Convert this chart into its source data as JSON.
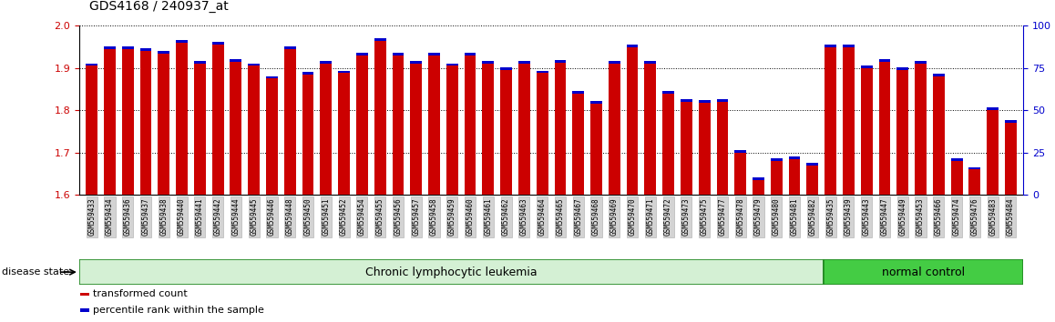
{
  "title": "GDS4168 / 240937_at",
  "samples": [
    "GSM559433",
    "GSM559434",
    "GSM559436",
    "GSM559437",
    "GSM559438",
    "GSM559440",
    "GSM559441",
    "GSM559442",
    "GSM559444",
    "GSM559445",
    "GSM559446",
    "GSM559448",
    "GSM559450",
    "GSM559451",
    "GSM559452",
    "GSM559454",
    "GSM559455",
    "GSM559456",
    "GSM559457",
    "GSM559458",
    "GSM559459",
    "GSM559460",
    "GSM559461",
    "GSM559462",
    "GSM559463",
    "GSM559464",
    "GSM559465",
    "GSM559467",
    "GSM559468",
    "GSM559469",
    "GSM559470",
    "GSM559471",
    "GSM559472",
    "GSM559473",
    "GSM559475",
    "GSM559477",
    "GSM559478",
    "GSM559479",
    "GSM559480",
    "GSM559481",
    "GSM559482",
    "GSM559435",
    "GSM559439",
    "GSM559443",
    "GSM559447",
    "GSM559449",
    "GSM559453",
    "GSM559466",
    "GSM559474",
    "GSM559476",
    "GSM559483",
    "GSM559484"
  ],
  "values": [
    1.905,
    1.945,
    1.945,
    1.94,
    1.935,
    1.96,
    1.91,
    1.955,
    1.915,
    1.905,
    1.875,
    1.945,
    1.885,
    1.91,
    1.888,
    1.93,
    1.965,
    1.93,
    1.91,
    1.93,
    1.905,
    1.93,
    1.91,
    1.895,
    1.91,
    1.888,
    1.912,
    1.84,
    1.815,
    1.91,
    1.95,
    1.91,
    1.84,
    1.82,
    1.818,
    1.82,
    1.7,
    1.635,
    1.68,
    1.685,
    1.67,
    1.95,
    1.95,
    1.9,
    1.915,
    1.895,
    1.91,
    1.88,
    1.68,
    1.66,
    1.8,
    1.77
  ],
  "cll_count": 41,
  "nc_count": 11,
  "ylim": [
    1.6,
    2.0
  ],
  "yticks": [
    1.6,
    1.7,
    1.8,
    1.9,
    2.0
  ],
  "right_yticks": [
    0,
    25,
    50,
    75,
    100
  ],
  "bar_color": "#cc0000",
  "blue_color": "#0000cc",
  "cll_color": "#d4f0d4",
  "nc_color": "#44cc44",
  "legend_items": [
    {
      "label": "transformed count",
      "color": "#cc0000"
    },
    {
      "label": "percentile rank within the sample",
      "color": "#0000cc"
    }
  ],
  "disease_state_label": "disease state",
  "tick_label_color": "#cc0000",
  "right_axis_color": "#0000cc"
}
